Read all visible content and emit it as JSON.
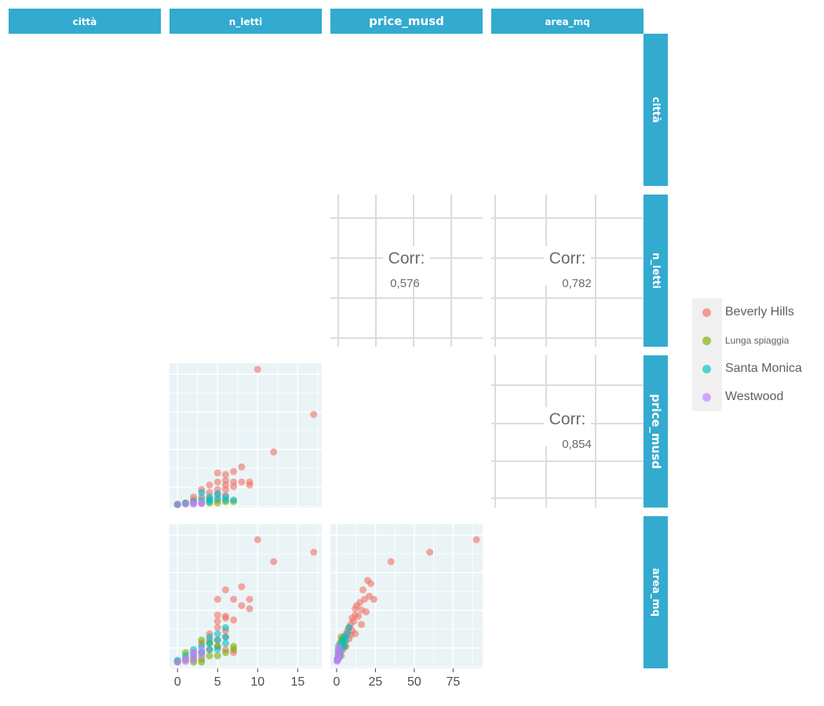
{
  "colors": {
    "strip": "#33aacf",
    "panel_bg": "#eaf3f6",
    "grid": "#ffffff",
    "corr_grid": "#dcdcdc",
    "text": "#6b6b6b"
  },
  "variables": [
    "città",
    "n_letti",
    "price_musd",
    "area_mq"
  ],
  "legend": {
    "items": [
      {
        "label": "Beverly Hills",
        "color": "#f07167"
      },
      {
        "label": "Lunga spiaggia",
        "color": "#7cae00"
      },
      {
        "label": "Santa Monica",
        "color": "#00bfc4"
      },
      {
        "label": "Westwood",
        "color": "#c77cff"
      }
    ]
  },
  "chart_data": {
    "type": "scatter",
    "series_names": [
      "Beverly Hills",
      "Lunga spiaggia",
      "Santa Monica",
      "Westwood"
    ],
    "correlations": [
      {
        "label": "Corr:",
        "pair": [
          "n_letti",
          "price_musd"
        ],
        "value": "0,576"
      },
      {
        "label": "Corr:",
        "pair": [
          "n_letti",
          "area_mq"
        ],
        "value": "0,782"
      },
      {
        "label": "Corr:",
        "pair": [
          "price_musd",
          "area_mq"
        ],
        "value": "0,854"
      }
    ],
    "axes": {
      "n_letti": {
        "ticks": [
          0,
          5,
          10,
          15
        ],
        "range": [
          -1,
          18
        ]
      },
      "price_musd": {
        "ticks": [
          0,
          25,
          50,
          75
        ],
        "range": [
          -4,
          94
        ]
      },
      "price_y": {
        "range": [
          -2,
          92
        ]
      },
      "area_y": {
        "range": [
          -50,
          2200
        ]
      }
    },
    "beds_vs_price": [
      {
        "series": "Beverly Hills",
        "points": [
          [
            10,
            90
          ],
          [
            17,
            60
          ],
          [
            12,
            35
          ],
          [
            8,
            25
          ],
          [
            7,
            22
          ],
          [
            5,
            21
          ],
          [
            6,
            20
          ],
          [
            6,
            16
          ],
          [
            7,
            15
          ],
          [
            5,
            15
          ],
          [
            8,
            15
          ],
          [
            9,
            15
          ],
          [
            4,
            13
          ],
          [
            6,
            13
          ],
          [
            9,
            13
          ],
          [
            7,
            12
          ],
          [
            3,
            10
          ],
          [
            5,
            10
          ],
          [
            4,
            8
          ],
          [
            5,
            7
          ],
          [
            2,
            5
          ],
          [
            3,
            5
          ],
          [
            4,
            4
          ],
          [
            6,
            6
          ],
          [
            6,
            10
          ],
          [
            5,
            3
          ],
          [
            2,
            3
          ],
          [
            1,
            1
          ],
          [
            0,
            0
          ]
        ]
      },
      {
        "series": "Lunga spiaggia",
        "points": [
          [
            7,
            2
          ],
          [
            6,
            2
          ],
          [
            5,
            1
          ],
          [
            3,
            1
          ],
          [
            4,
            1
          ],
          [
            2,
            1
          ],
          [
            1,
            0.5
          ],
          [
            0,
            0
          ]
        ]
      },
      {
        "series": "Santa Monica",
        "points": [
          [
            3,
            8
          ],
          [
            5,
            7
          ],
          [
            6,
            5
          ],
          [
            4,
            5
          ],
          [
            5,
            4
          ],
          [
            6,
            3
          ],
          [
            4,
            3
          ],
          [
            3,
            3
          ],
          [
            2,
            2
          ],
          [
            1,
            1
          ],
          [
            0,
            0
          ],
          [
            7,
            3
          ],
          [
            4,
            2
          ]
        ]
      },
      {
        "series": "Westwood",
        "points": [
          [
            1,
            0.4
          ],
          [
            2,
            0.8
          ],
          [
            3,
            1
          ],
          [
            0,
            0.3
          ],
          [
            2,
            0.3
          ],
          [
            3,
            0.7
          ]
        ]
      }
    ],
    "beds_vs_area": [
      {
        "series": "Beverly Hills",
        "points": [
          [
            10,
            2000
          ],
          [
            12,
            1650
          ],
          [
            17,
            1800
          ],
          [
            8,
            1250
          ],
          [
            6,
            1200
          ],
          [
            5,
            1050
          ],
          [
            7,
            1050
          ],
          [
            9,
            1050
          ],
          [
            8,
            950
          ],
          [
            9,
            900
          ],
          [
            5,
            800
          ],
          [
            6,
            780
          ],
          [
            6,
            750
          ],
          [
            7,
            720
          ],
          [
            5,
            700
          ],
          [
            5,
            600
          ],
          [
            6,
            550
          ],
          [
            4,
            500
          ],
          [
            6,
            450
          ],
          [
            5,
            400
          ],
          [
            4,
            400
          ],
          [
            3,
            350
          ],
          [
            5,
            300
          ],
          [
            4,
            250
          ],
          [
            6,
            250
          ],
          [
            3,
            200
          ],
          [
            2,
            200
          ],
          [
            7,
            200
          ],
          [
            1,
            100
          ],
          [
            0,
            50
          ]
        ]
      },
      {
        "series": "Lunga spiaggia",
        "points": [
          [
            3,
            400
          ],
          [
            4,
            350
          ],
          [
            5,
            300
          ],
          [
            7,
            300
          ],
          [
            7,
            250
          ],
          [
            6,
            200
          ],
          [
            5,
            150
          ],
          [
            4,
            150
          ],
          [
            3,
            100
          ],
          [
            2,
            100
          ],
          [
            1,
            80
          ],
          [
            0,
            60
          ],
          [
            2,
            50
          ],
          [
            3,
            50
          ],
          [
            1,
            200
          ]
        ]
      },
      {
        "series": "Santa Monica",
        "points": [
          [
            6,
            600
          ],
          [
            5,
            500
          ],
          [
            6,
            450
          ],
          [
            4,
            450
          ],
          [
            5,
            400
          ],
          [
            4,
            350
          ],
          [
            6,
            350
          ],
          [
            3,
            300
          ],
          [
            2,
            250
          ],
          [
            4,
            250
          ],
          [
            3,
            200
          ],
          [
            5,
            250
          ],
          [
            1,
            150
          ],
          [
            2,
            150
          ],
          [
            0,
            80
          ]
        ]
      },
      {
        "series": "Westwood",
        "points": [
          [
            1,
            100
          ],
          [
            2,
            150
          ],
          [
            2,
            200
          ],
          [
            3,
            250
          ],
          [
            3,
            150
          ],
          [
            0,
            50
          ],
          [
            1,
            60
          ],
          [
            2,
            80
          ]
        ]
      }
    ],
    "price_vs_area": [
      {
        "series": "Beverly Hills",
        "points": [
          [
            90,
            2000
          ],
          [
            60,
            1800
          ],
          [
            35,
            1650
          ],
          [
            20,
            1350
          ],
          [
            22,
            1300
          ],
          [
            17,
            1200
          ],
          [
            21,
            1100
          ],
          [
            18,
            1050
          ],
          [
            24,
            1050
          ],
          [
            15,
            1000
          ],
          [
            13,
            950
          ],
          [
            12,
            900
          ],
          [
            16,
            880
          ],
          [
            19,
            850
          ],
          [
            12,
            800
          ],
          [
            14,
            780
          ],
          [
            10,
            750
          ],
          [
            11,
            700
          ],
          [
            9,
            650
          ],
          [
            16,
            650
          ],
          [
            8,
            600
          ],
          [
            7,
            550
          ],
          [
            10,
            550
          ],
          [
            12,
            500
          ],
          [
            6,
            500
          ],
          [
            9,
            480
          ],
          [
            5,
            450
          ],
          [
            8,
            420
          ],
          [
            3,
            400
          ],
          [
            5,
            350
          ],
          [
            6,
            300
          ],
          [
            4,
            250
          ],
          [
            2,
            200
          ],
          [
            3,
            150
          ],
          [
            1,
            100
          ]
        ]
      },
      {
        "series": "Lunga spiaggia",
        "points": [
          [
            3,
            450
          ],
          [
            4,
            400
          ],
          [
            2,
            350
          ],
          [
            5,
            300
          ],
          [
            1,
            250
          ],
          [
            2,
            200
          ],
          [
            1,
            150
          ],
          [
            0.5,
            100
          ]
        ]
      },
      {
        "series": "Santa Monica",
        "points": [
          [
            8,
            600
          ],
          [
            7,
            500
          ],
          [
            5,
            450
          ],
          [
            6,
            400
          ],
          [
            4,
            400
          ],
          [
            3,
            350
          ],
          [
            5,
            300
          ],
          [
            2,
            300
          ],
          [
            3,
            250
          ],
          [
            1,
            200
          ],
          [
            2,
            150
          ],
          [
            1,
            100
          ],
          [
            0.5,
            80
          ]
        ]
      },
      {
        "series": "Westwood",
        "points": [
          [
            0.5,
            80
          ],
          [
            1,
            150
          ],
          [
            1.5,
            200
          ],
          [
            2,
            250
          ],
          [
            1,
            300
          ],
          [
            0.8,
            120
          ],
          [
            0.3,
            60
          ]
        ]
      }
    ]
  }
}
